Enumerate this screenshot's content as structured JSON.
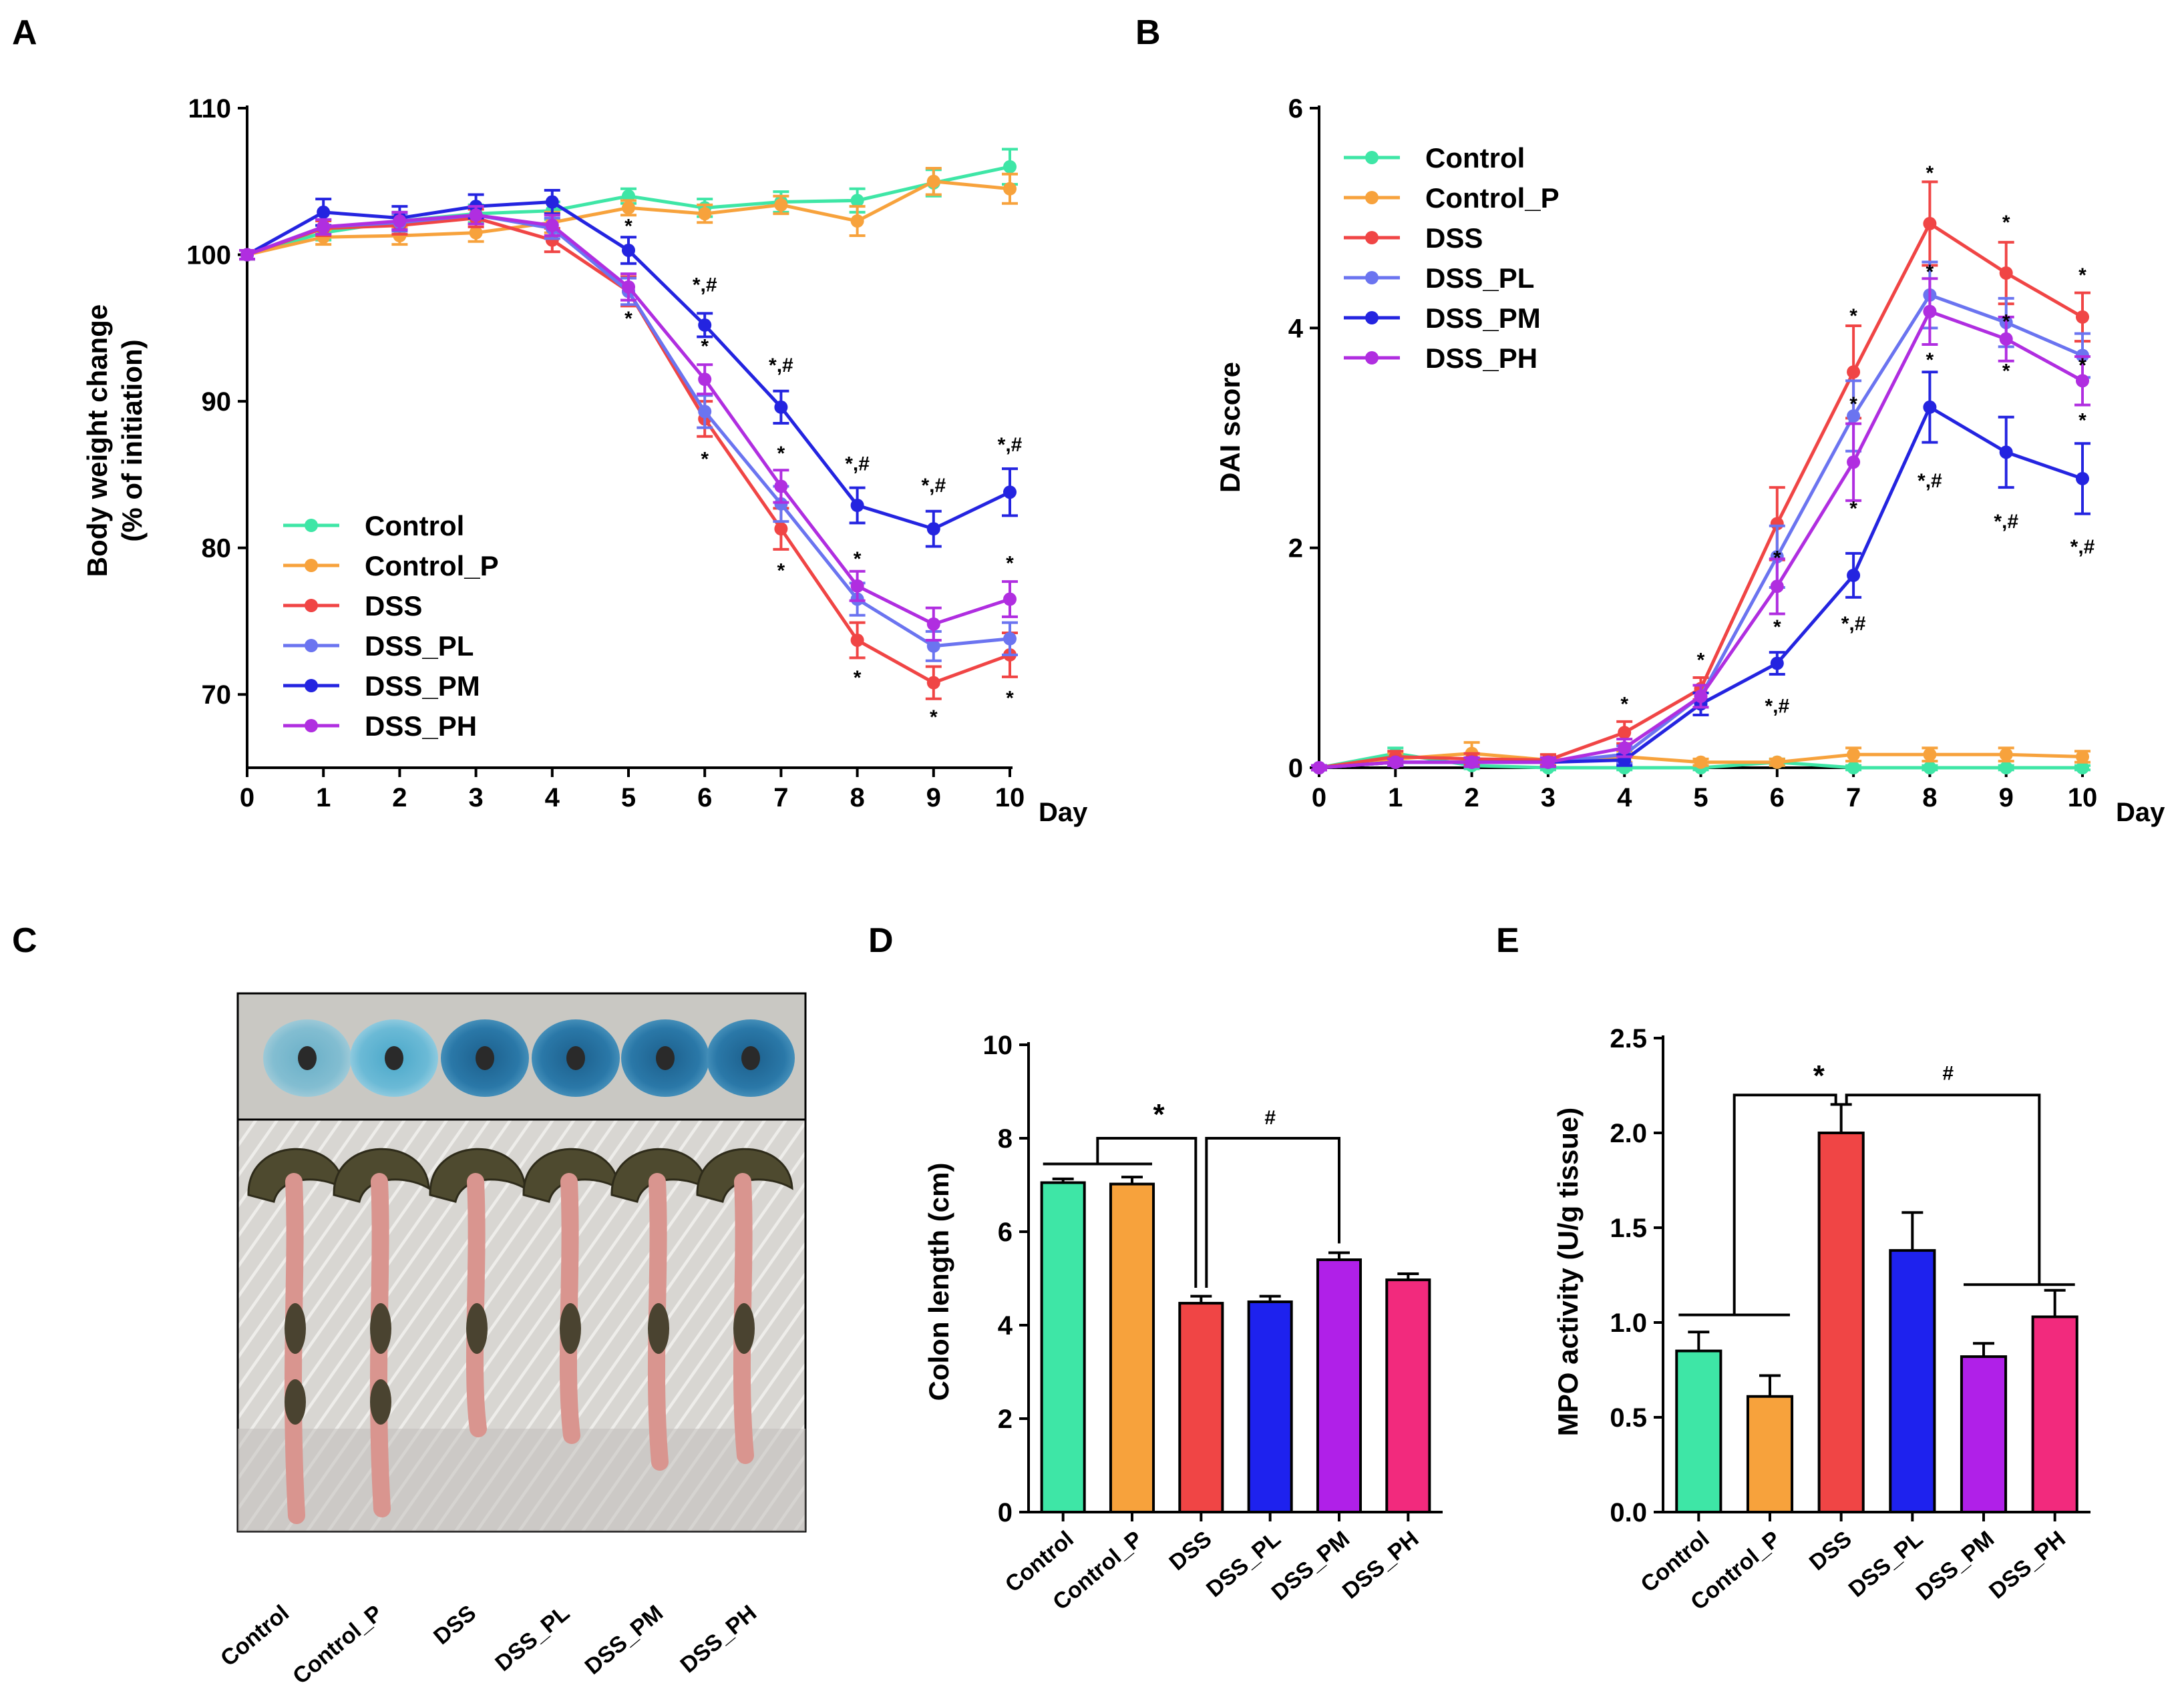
{
  "panels": {
    "A": "A",
    "B": "B",
    "C": "C",
    "D": "D",
    "E": "E"
  },
  "colors": {
    "Control": "#3ee6a6",
    "Control_P": "#f7a23c",
    "DSS": "#f04545",
    "DSS_PL": "#6b74f0",
    "DSS_PM": "#2424e0",
    "DSS_PH": "#b02ee0",
    "DSS_PH_bar": "#f22a7d",
    "DSS_PM_bar": "#b020e8",
    "DSS_PL_bar": "#1e22ee"
  },
  "chart_data": [
    {
      "id": "A",
      "type": "line",
      "ylabel": "Body weight change",
      "ylabel2": "(% of initiation)",
      "xlabel": "Day",
      "x": [
        0,
        1,
        2,
        3,
        4,
        5,
        6,
        7,
        8,
        9,
        10
      ],
      "ylim": [
        65,
        110
      ],
      "yticks": [
        70,
        80,
        90,
        100,
        110
      ],
      "legend_position": "bottom-left",
      "series": [
        {
          "name": "Control",
          "values": [
            100,
            101.5,
            102.3,
            102.8,
            103.0,
            104.0,
            103.2,
            103.6,
            103.7,
            104.9,
            106.0
          ],
          "err": [
            0.3,
            0.5,
            0.6,
            0.6,
            0.6,
            0.5,
            0.6,
            0.7,
            0.8,
            0.9,
            1.2
          ]
        },
        {
          "name": "Control_P",
          "values": [
            100,
            101.2,
            101.3,
            101.5,
            102.2,
            103.2,
            102.8,
            103.4,
            102.3,
            105.0,
            104.5
          ],
          "err": [
            0.3,
            0.5,
            0.6,
            0.6,
            0.7,
            0.5,
            0.6,
            0.6,
            1.0,
            0.9,
            1.0
          ]
        },
        {
          "name": "DSS",
          "values": [
            100,
            101.8,
            102.0,
            102.5,
            101.0,
            97.5,
            88.8,
            81.3,
            73.7,
            70.8,
            72.7
          ],
          "err": [
            0.3,
            0.5,
            0.6,
            0.6,
            0.8,
            1.0,
            1.2,
            1.4,
            1.2,
            1.1,
            1.5
          ]
        },
        {
          "name": "DSS_PL",
          "values": [
            100,
            101.9,
            102.2,
            102.7,
            101.8,
            97.5,
            89.3,
            83.0,
            76.5,
            73.3,
            73.8
          ],
          "err": [
            0.3,
            0.5,
            0.6,
            0.6,
            0.7,
            0.9,
            1.1,
            1.2,
            1.1,
            1.0,
            1.1
          ]
        },
        {
          "name": "DSS_PM",
          "values": [
            100,
            102.9,
            102.5,
            103.3,
            103.6,
            100.3,
            95.2,
            89.6,
            82.9,
            81.3,
            83.8
          ],
          "err": [
            0.3,
            0.9,
            0.8,
            0.8,
            0.8,
            0.9,
            0.8,
            1.1,
            1.2,
            1.2,
            1.6
          ]
        },
        {
          "name": "DSS_PH",
          "values": [
            100,
            101.9,
            102.3,
            102.7,
            102.0,
            97.8,
            91.5,
            84.2,
            77.4,
            74.8,
            76.5
          ],
          "err": [
            0.3,
            0.5,
            0.6,
            0.6,
            0.7,
            0.9,
            1.0,
            1.1,
            1.0,
            1.1,
            1.2
          ]
        }
      ],
      "annotations": [
        {
          "day": 5,
          "value": 101.5,
          "text": "*"
        },
        {
          "day": 5,
          "value": 95.2,
          "text": "*"
        },
        {
          "day": 6,
          "value": 97.5,
          "text": "*,#"
        },
        {
          "day": 6,
          "value": 93.3,
          "text": "*"
        },
        {
          "day": 6,
          "value": 85.6,
          "text": "*"
        },
        {
          "day": 7,
          "value": 92.0,
          "text": "*,#"
        },
        {
          "day": 7,
          "value": 86.0,
          "text": "*"
        },
        {
          "day": 7,
          "value": 78.0,
          "text": "*"
        },
        {
          "day": 8,
          "value": 85.3,
          "text": "*,#"
        },
        {
          "day": 8,
          "value": 78.8,
          "text": "*"
        },
        {
          "day": 8,
          "value": 70.7,
          "text": "*"
        },
        {
          "day": 9,
          "value": 83.8,
          "text": "*,#"
        },
        {
          "day": 9,
          "value": 68.0,
          "text": "*"
        },
        {
          "day": 10,
          "value": 86.6,
          "text": "*,#"
        },
        {
          "day": 10,
          "value": 78.5,
          "text": "*"
        },
        {
          "day": 10,
          "value": 69.3,
          "text": "*"
        }
      ]
    },
    {
      "id": "B",
      "type": "line",
      "ylabel": "DAI score",
      "xlabel": "Day",
      "x": [
        0,
        1,
        2,
        3,
        4,
        5,
        6,
        7,
        8,
        9,
        10
      ],
      "ylim": [
        0,
        6
      ],
      "yticks": [
        0,
        2,
        4,
        6
      ],
      "legend_position": "top-left",
      "series": [
        {
          "name": "Control",
          "values": [
            0,
            0.13,
            0.02,
            0.0,
            0.0,
            0.0,
            0.05,
            0.0,
            0.0,
            0.0,
            0.0
          ],
          "err": [
            0.02,
            0.05,
            0.03,
            0.02,
            0.02,
            0.02,
            0.03,
            0.02,
            0.02,
            0.02,
            0.02
          ]
        },
        {
          "name": "Control_P",
          "values": [
            0,
            0.08,
            0.13,
            0.07,
            0.1,
            0.05,
            0.05,
            0.12,
            0.12,
            0.12,
            0.1
          ],
          "err": [
            0.02,
            0.05,
            0.1,
            0.05,
            0.05,
            0.03,
            0.03,
            0.06,
            0.06,
            0.06,
            0.05
          ]
        },
        {
          "name": "DSS",
          "values": [
            0,
            0.1,
            0.08,
            0.07,
            0.32,
            0.72,
            2.22,
            3.6,
            4.95,
            4.5,
            4.1
          ],
          "err": [
            0.02,
            0.05,
            0.05,
            0.05,
            0.1,
            0.1,
            0.33,
            0.42,
            0.38,
            0.28,
            0.22
          ]
        },
        {
          "name": "DSS_PL",
          "values": [
            0,
            0.05,
            0.05,
            0.05,
            0.12,
            0.65,
            1.92,
            3.2,
            4.3,
            4.05,
            3.75
          ],
          "err": [
            0.02,
            0.03,
            0.04,
            0.04,
            0.08,
            0.1,
            0.28,
            0.32,
            0.3,
            0.22,
            0.2
          ]
        },
        {
          "name": "DSS_PM",
          "values": [
            0,
            0.05,
            0.05,
            0.05,
            0.07,
            0.58,
            0.95,
            1.75,
            3.28,
            2.87,
            2.63
          ],
          "err": [
            0.02,
            0.03,
            0.04,
            0.04,
            0.05,
            0.1,
            0.1,
            0.2,
            0.32,
            0.32,
            0.32
          ]
        },
        {
          "name": "DSS_PH",
          "values": [
            0,
            0.05,
            0.05,
            0.05,
            0.18,
            0.65,
            1.65,
            2.78,
            4.15,
            3.9,
            3.52
          ],
          "err": [
            0.02,
            0.03,
            0.04,
            0.04,
            0.08,
            0.1,
            0.25,
            0.35,
            0.3,
            0.2,
            0.22
          ]
        }
      ],
      "annotations": [
        {
          "day": 4,
          "value": 0.52,
          "text": "*"
        },
        {
          "day": 5,
          "value": 0.92,
          "text": "*"
        },
        {
          "day": 6,
          "value": 1.85,
          "text": "*"
        },
        {
          "day": 6,
          "value": 1.22,
          "text": "*"
        },
        {
          "day": 6,
          "value": 0.5,
          "text": "*,#"
        },
        {
          "day": 7,
          "value": 4.05,
          "text": "*"
        },
        {
          "day": 7,
          "value": 3.25,
          "text": "*"
        },
        {
          "day": 7,
          "value": 2.3,
          "text": "*"
        },
        {
          "day": 7,
          "value": 1.25,
          "text": "*,#"
        },
        {
          "day": 8,
          "value": 5.35,
          "text": "*"
        },
        {
          "day": 8,
          "value": 4.45,
          "text": "*"
        },
        {
          "day": 8,
          "value": 3.65,
          "text": "*"
        },
        {
          "day": 8,
          "value": 2.55,
          "text": "*,#"
        },
        {
          "day": 9,
          "value": 4.9,
          "text": "*"
        },
        {
          "day": 9,
          "value": 4.0,
          "text": "*"
        },
        {
          "day": 9,
          "value": 3.55,
          "text": "*"
        },
        {
          "day": 9,
          "value": 2.18,
          "text": "*,#"
        },
        {
          "day": 10,
          "value": 4.42,
          "text": "*"
        },
        {
          "day": 10,
          "value": 3.6,
          "text": "*"
        },
        {
          "day": 10,
          "value": 3.1,
          "text": "*"
        },
        {
          "day": 10,
          "value": 1.95,
          "text": "*,#"
        }
      ]
    },
    {
      "id": "D",
      "type": "bar",
      "ylabel": "Colon length (cm)",
      "categories": [
        "Control",
        "Control_P",
        "DSS",
        "DSS_PL",
        "DSS_PM",
        "DSS_PH"
      ],
      "values": [
        7.05,
        7.02,
        4.47,
        4.5,
        5.4,
        4.97
      ],
      "err": [
        0.08,
        0.15,
        0.15,
        0.12,
        0.15,
        0.13
      ],
      "ylim": [
        0,
        10
      ],
      "yticks": [
        0,
        2,
        4,
        6,
        8,
        10
      ],
      "brackets": [
        {
          "label": "*"
        },
        {
          "label": "#"
        }
      ]
    },
    {
      "id": "E",
      "type": "bar",
      "ylabel": "MPO activity (U/g tissue)",
      "categories": [
        "Control",
        "Control_P",
        "DSS",
        "DSS_PL",
        "DSS_PM",
        "DSS_PH"
      ],
      "values": [
        0.85,
        0.61,
        2.0,
        1.38,
        0.82,
        1.03
      ],
      "err": [
        0.1,
        0.11,
        0.15,
        0.2,
        0.07,
        0.14
      ],
      "ylim": [
        0,
        2.5
      ],
      "yticks": [
        "0.0",
        "0.5",
        "1.0",
        "1.5",
        "2.0",
        "2.5"
      ],
      "brackets": [
        {
          "label": "*"
        },
        {
          "label": "#"
        }
      ]
    }
  ],
  "photo": {
    "labels": [
      "Control",
      "Control_P",
      "DSS",
      "DSS_PL",
      "DSS_PM",
      "DSS_PH"
    ]
  }
}
